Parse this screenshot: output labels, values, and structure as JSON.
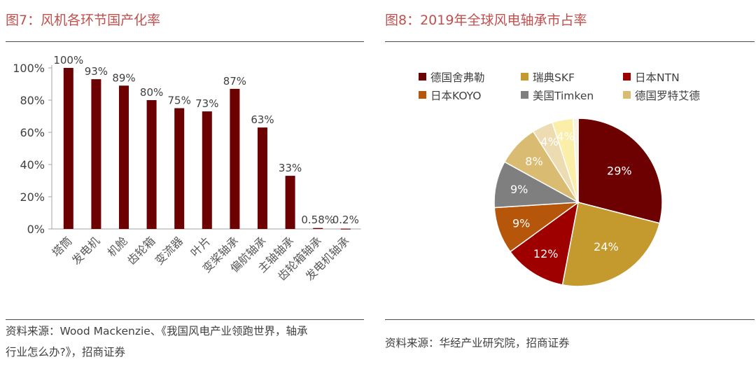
{
  "left_panel": {
    "title": "图7：风机各环节国产化率",
    "source": "资料来源：Wood Mackenzie、《我国风电产业领跑世界，轴承",
    "source_line2": "行业怎么办?》，招商证券"
  },
  "right_panel": {
    "title": "图8：2019年全球风电轴承市占率",
    "source": "资料来源：华经产业研究院，招商证券"
  },
  "colors": {
    "title": "#c0504d",
    "bar": "#6d0000",
    "axis": "#a6a6a6"
  },
  "chart_data": [
    {
      "type": "bar",
      "title": "风机各环节国产化率",
      "categories": [
        "塔筒",
        "发电机",
        "机舱",
        "齿轮箱",
        "变流器",
        "叶片",
        "变桨轴承",
        "偏航轴承",
        "主轴轴承",
        "齿轮箱轴承",
        "发电机轴承"
      ],
      "values": [
        100,
        93,
        89,
        80,
        75,
        73,
        87,
        63,
        33,
        0.58,
        0.2
      ],
      "data_labels": [
        "100%",
        "93%",
        "89%",
        "80%",
        "75%",
        "73%",
        "87%",
        "63%",
        "33%",
        "0.58%",
        "0.2%"
      ],
      "y_ticks": [
        "0%",
        "20%",
        "40%",
        "60%",
        "80%",
        "100%"
      ],
      "ylim": [
        0,
        100
      ],
      "xlabel": "",
      "ylabel": "",
      "grid": false
    },
    {
      "type": "pie",
      "title": "2019年全球风电轴承市占率",
      "legend_position": "top",
      "slices": [
        {
          "name": "德国舍弗勒",
          "value": 29,
          "label": "29%",
          "color": "#6d0000"
        },
        {
          "name": "瑞典SKF",
          "value": 24,
          "label": "24%",
          "color": "#c49a2f"
        },
        {
          "name": "日本NTN",
          "value": 12,
          "label": "12%",
          "color": "#9e0000"
        },
        {
          "name": "日本KOYO",
          "value": 9,
          "label": "9%",
          "color": "#b5560a"
        },
        {
          "name": "美国Timken",
          "value": 9,
          "label": "9%",
          "color": "#7f7f7f"
        },
        {
          "name": "德国罗特艾德",
          "value": 8,
          "label": "8%",
          "color": "#d9bc72"
        },
        {
          "name": "",
          "value": 4,
          "label": "4%",
          "color": "#eddcb2"
        },
        {
          "name": "",
          "value": 4,
          "label": "4%",
          "color": "#fbeea8"
        },
        {
          "name": "",
          "value": 1,
          "label": "",
          "color": "#f7f3e0"
        }
      ]
    }
  ]
}
